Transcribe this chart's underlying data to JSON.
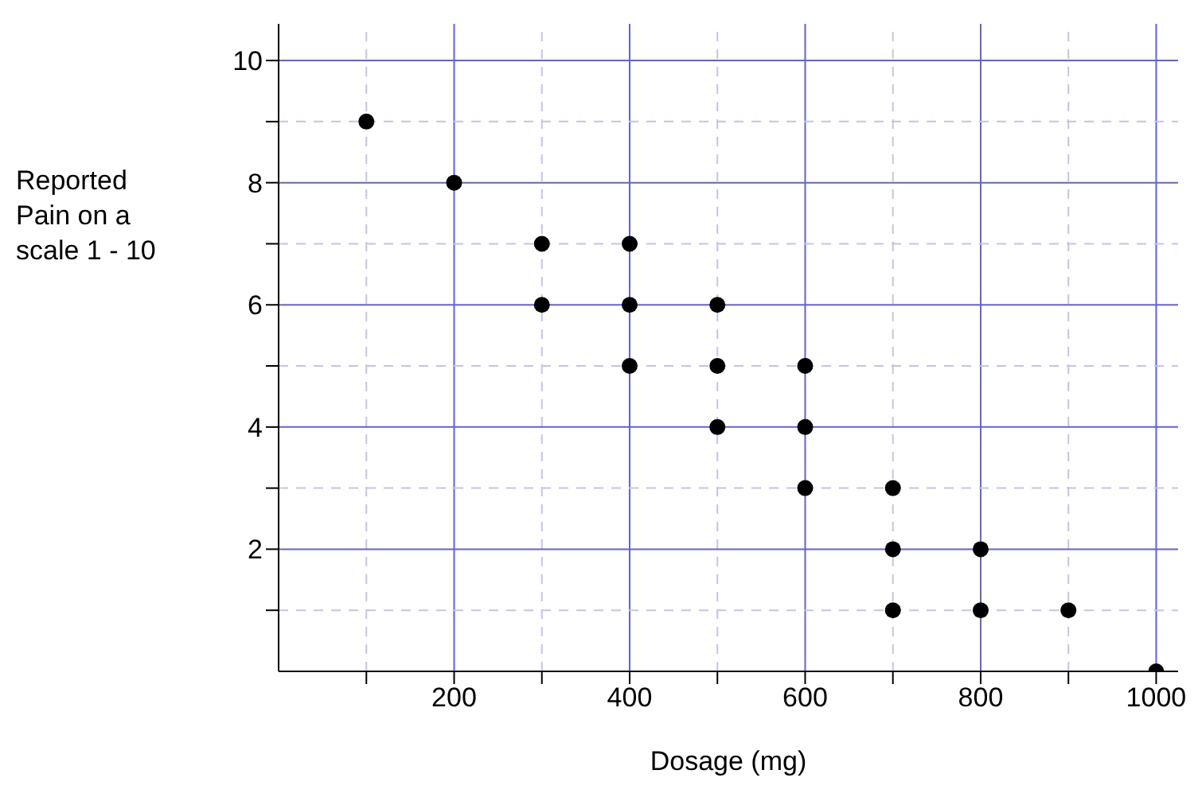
{
  "chart_data": {
    "type": "scatter",
    "xlabel": "Dosage (mg)",
    "ylabel": "Reported Pain on a scale 1 - 10",
    "x": [
      100,
      200,
      300,
      300,
      400,
      400,
      400,
      500,
      500,
      500,
      600,
      600,
      600,
      700,
      700,
      700,
      800,
      800,
      900,
      1000
    ],
    "series": [
      {
        "color": "#000000",
        "values": [
          9,
          8,
          7,
          6,
          7,
          6,
          5,
          6,
          5,
          4,
          5,
          4,
          3,
          3,
          2,
          1,
          2,
          1,
          1,
          0
        ]
      }
    ],
    "xlim": [
      0,
      1025
    ],
    "ylim": [
      0,
      10.6
    ],
    "xticks": [
      {
        "value": 100,
        "label": null
      },
      200,
      {
        "value": 300,
        "label": null
      },
      400,
      {
        "value": 500,
        "label": null
      },
      600,
      {
        "value": 700,
        "label": null
      },
      800,
      {
        "value": 900,
        "label": null
      },
      1000
    ],
    "yticks": [
      {
        "value": 1,
        "label": null
      },
      2,
      {
        "value": 3,
        "label": null
      },
      4,
      {
        "value": 5,
        "label": null
      },
      6,
      {
        "value": 7,
        "label": null
      },
      8,
      {
        "value": 9,
        "label": null
      },
      10
    ],
    "grid": true,
    "marker": "circle"
  }
}
